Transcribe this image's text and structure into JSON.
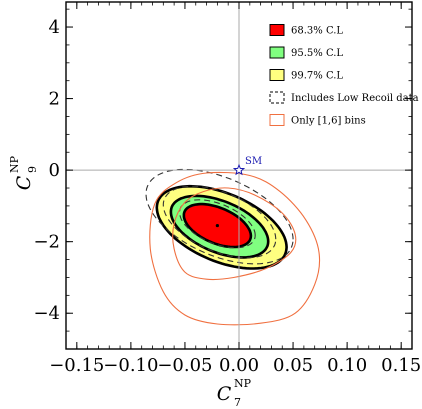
{
  "chart_data": {
    "type": "contour",
    "xlabel": "C",
    "xlabel_sub": "7",
    "xlabel_sup": "NP",
    "ylabel": "C",
    "ylabel_sub": "9",
    "ylabel_sup": "NP",
    "xlim": [
      -0.16,
      0.16
    ],
    "ylim": [
      -5,
      4.7
    ],
    "xticks": [
      -0.15,
      -0.1,
      -0.05,
      0.0,
      0.05,
      0.1,
      0.15
    ],
    "xtick_labels": [
      "−0.15",
      "−0.10",
      "−0.05",
      "0.00",
      "0.05",
      "0.10",
      "0.15"
    ],
    "yticks": [
      -4,
      -2,
      0,
      2,
      4
    ],
    "ytick_labels": [
      "−4",
      "−2",
      "0",
      "2",
      "4"
    ],
    "best_fit": {
      "x": -0.02,
      "y": -1.55
    },
    "sm_point": {
      "x": 0.0,
      "y": 0.0,
      "label": "SM"
    },
    "regions": [
      {
        "name": "99.7% C.L",
        "color": "#ffff80",
        "center": [
          -0.016,
          -1.6
        ],
        "semi_axes": [
          0.06,
          1.15
        ],
        "angle": -0.5
      },
      {
        "name": "95.5% C.L",
        "color": "#80ff80",
        "center": [
          -0.018,
          -1.58
        ],
        "semi_axes": [
          0.045,
          0.86
        ],
        "angle": -0.5
      },
      {
        "name": "68.3% C.L",
        "color": "#ff0000",
        "center": [
          -0.02,
          -1.55
        ],
        "semi_axes": [
          0.031,
          0.6
        ],
        "angle": -0.5
      }
    ],
    "dashed_contours": [
      {
        "center": [
          -0.018,
          -1.3
        ],
        "semi_axes": [
          0.068,
          1.32
        ],
        "angle": -0.5
      },
      {
        "center": [
          -0.018,
          -1.45
        ],
        "semi_axes": [
          0.052,
          1.0
        ],
        "angle": -0.5
      },
      {
        "center": [
          -0.02,
          -1.5
        ],
        "semi_axes": [
          0.035,
          0.67
        ],
        "angle": -0.5
      }
    ],
    "orange_contours": [
      [
        [
          -0.033,
          -0.6
        ],
        [
          -0.05,
          -0.9
        ],
        [
          -0.06,
          -1.5
        ],
        [
          -0.06,
          -2.2
        ],
        [
          -0.05,
          -2.85
        ],
        [
          -0.03,
          -3.05
        ],
        [
          -0.005,
          -3.0
        ],
        [
          0.025,
          -2.75
        ],
        [
          0.048,
          -2.3
        ],
        [
          0.052,
          -1.8
        ],
        [
          0.04,
          -1.2
        ],
        [
          0.015,
          -0.7
        ],
        [
          -0.01,
          -0.5
        ]
      ],
      [
        [
          -0.03,
          -0.08
        ],
        [
          -0.058,
          -0.35
        ],
        [
          -0.078,
          -0.95
        ],
        [
          -0.082,
          -2.2
        ],
        [
          -0.07,
          -3.4
        ],
        [
          -0.05,
          -4.05
        ],
        [
          -0.02,
          -4.3
        ],
        [
          0.02,
          -4.28
        ],
        [
          0.052,
          -4.0
        ],
        [
          0.07,
          -3.2
        ],
        [
          0.074,
          -2.3
        ],
        [
          0.062,
          -1.4
        ],
        [
          0.038,
          -0.6
        ],
        [
          0.01,
          -0.15
        ]
      ]
    ],
    "legend": [
      {
        "label": "68.3% C.L",
        "style": "fill",
        "color": "#ff0000"
      },
      {
        "label": "95.5% C.L",
        "style": "fill",
        "color": "#80ff80"
      },
      {
        "label": "99.7% C.L",
        "style": "fill",
        "color": "#ffff80"
      },
      {
        "label": "Includes Low Recoil data",
        "style": "dashed",
        "color": "#000000"
      },
      {
        "label": "Only [1,6] bins",
        "style": "outline",
        "color": "#f07040"
      }
    ],
    "grid": false,
    "legend_position": "top-right"
  }
}
